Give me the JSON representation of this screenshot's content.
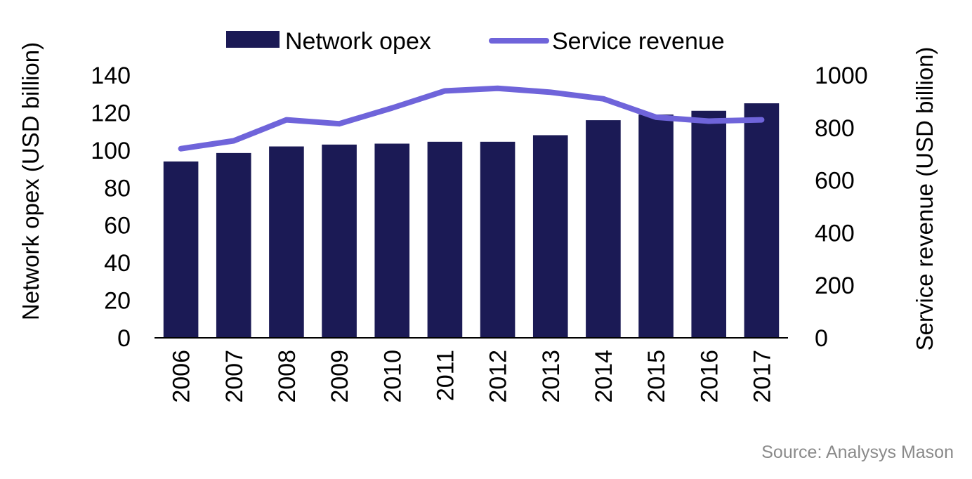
{
  "chart_data": {
    "type": "bar",
    "categories": [
      "2006",
      "2007",
      "2008",
      "2009",
      "2010",
      "2011",
      "2012",
      "2013",
      "2014",
      "2015",
      "2016",
      "2017"
    ],
    "series": [
      {
        "name": "Network opex",
        "type": "bar",
        "axis": "left",
        "color": "#1b1a55",
        "values": [
          94,
          98.5,
          102,
          103,
          103.5,
          104.5,
          104.5,
          108,
          116,
          119,
          121,
          125
        ]
      },
      {
        "name": "Service revenue",
        "type": "line",
        "axis": "right",
        "color": "#6f64da",
        "values": [
          720,
          750,
          830,
          815,
          875,
          940,
          950,
          935,
          910,
          840,
          825,
          830
        ]
      }
    ],
    "ylabel": "Network opex (USD billion)",
    "y2label": "Service revenue (USD billion)",
    "ylim": [
      0,
      140
    ],
    "y2lim": [
      0,
      1000
    ],
    "yticks": [
      "0",
      "20",
      "40",
      "60",
      "80",
      "100",
      "120",
      "140"
    ],
    "y2ticks": [
      "0",
      "200",
      "400",
      "600",
      "800",
      "1000"
    ],
    "legend_position": "top",
    "grid": false
  },
  "source": "Source: Analysys Mason"
}
